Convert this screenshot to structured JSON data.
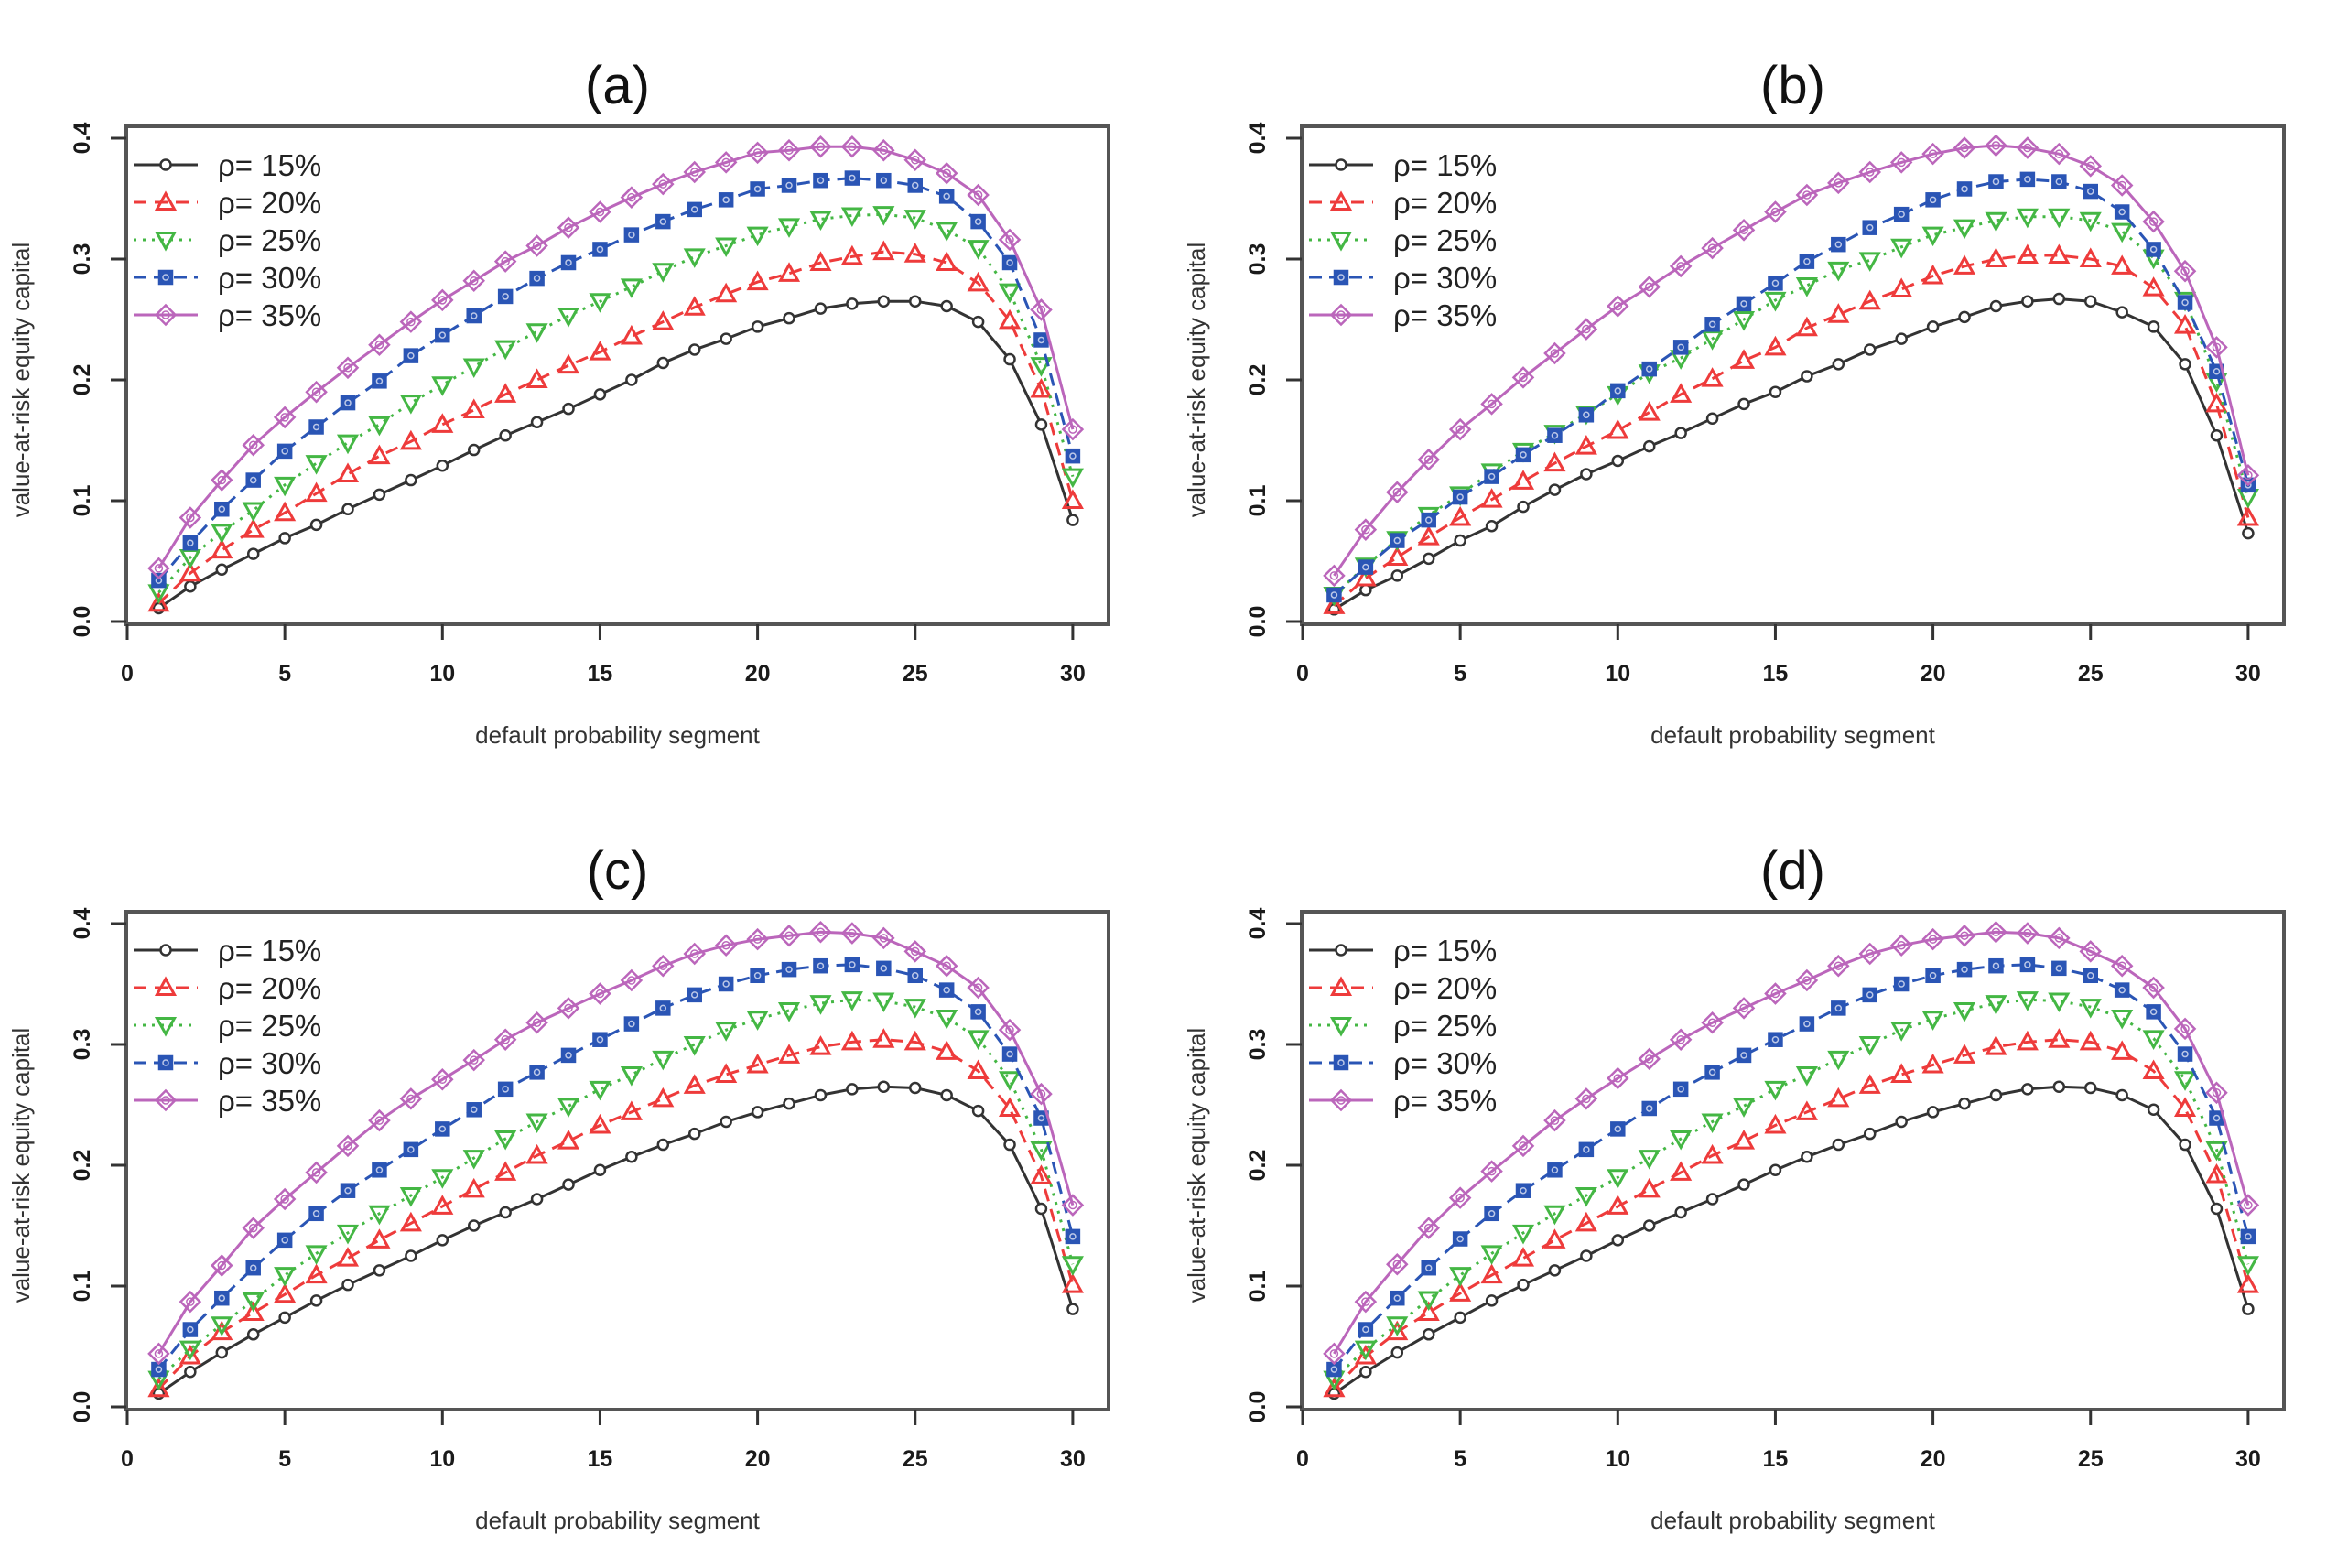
{
  "figure": {
    "panels": [
      "a",
      "b",
      "c",
      "d"
    ]
  },
  "chart_data": [
    {
      "type": "line",
      "panel": "a",
      "title": "(a)",
      "xlabel": "default probability segment",
      "ylabel": "value-at-risk equity capital",
      "xlim": [
        0,
        30
      ],
      "ylim": [
        0.0,
        0.4
      ],
      "xticks": [
        "0",
        "5",
        "10",
        "15",
        "20",
        "25",
        "30"
      ],
      "yticks": [
        "0.0",
        "0.1",
        "0.2",
        "0.3",
        "0.4"
      ],
      "grid": false,
      "legend_position": "top-left",
      "x": [
        1,
        2,
        3,
        4,
        5,
        6,
        7,
        8,
        9,
        10,
        11,
        12,
        13,
        14,
        15,
        16,
        17,
        18,
        19,
        20,
        21,
        22,
        23,
        24,
        25,
        26,
        27,
        28,
        29,
        30
      ],
      "series": [
        {
          "name": "ρ= 15%",
          "color": "#333333",
          "marker": "circle",
          "dash": "solid",
          "values": [
            0.011,
            0.029,
            0.043,
            0.056,
            0.069,
            0.08,
            0.093,
            0.105,
            0.117,
            0.129,
            0.142,
            0.154,
            0.165,
            0.176,
            0.188,
            0.2,
            0.214,
            0.225,
            0.234,
            0.244,
            0.251,
            0.259,
            0.263,
            0.265,
            0.265,
            0.261,
            0.248,
            0.217,
            0.163,
            0.084
          ]
        },
        {
          "name": "ρ= 20%",
          "color": "#ee3b3b",
          "marker": "triangle-up",
          "dash": "dashed",
          "values": [
            0.015,
            0.04,
            0.059,
            0.076,
            0.09,
            0.106,
            0.122,
            0.137,
            0.149,
            0.163,
            0.175,
            0.188,
            0.2,
            0.212,
            0.223,
            0.236,
            0.248,
            0.26,
            0.271,
            0.281,
            0.288,
            0.297,
            0.302,
            0.306,
            0.304,
            0.297,
            0.28,
            0.249,
            0.192,
            0.1
          ]
        },
        {
          "name": "ρ= 25%",
          "color": "#44b744",
          "marker": "triangle-down",
          "dash": "dotted",
          "values": [
            0.024,
            0.053,
            0.074,
            0.092,
            0.113,
            0.131,
            0.148,
            0.163,
            0.181,
            0.196,
            0.211,
            0.226,
            0.24,
            0.253,
            0.265,
            0.277,
            0.29,
            0.302,
            0.311,
            0.32,
            0.327,
            0.333,
            0.336,
            0.337,
            0.334,
            0.324,
            0.309,
            0.273,
            0.212,
            0.12
          ]
        },
        {
          "name": "ρ= 30%",
          "color": "#2a55b5",
          "marker": "square-filled",
          "dash": "dashdot",
          "values": [
            0.034,
            0.065,
            0.093,
            0.117,
            0.141,
            0.161,
            0.181,
            0.199,
            0.22,
            0.237,
            0.253,
            0.269,
            0.284,
            0.297,
            0.308,
            0.32,
            0.331,
            0.341,
            0.349,
            0.358,
            0.361,
            0.365,
            0.367,
            0.365,
            0.361,
            0.352,
            0.331,
            0.297,
            0.233,
            0.137
          ]
        },
        {
          "name": "ρ= 35%",
          "color": "#bb66bb",
          "marker": "diamond",
          "dash": "solid",
          "values": [
            0.044,
            0.086,
            0.117,
            0.146,
            0.169,
            0.19,
            0.21,
            0.229,
            0.248,
            0.266,
            0.282,
            0.298,
            0.311,
            0.326,
            0.339,
            0.351,
            0.362,
            0.372,
            0.38,
            0.388,
            0.39,
            0.393,
            0.393,
            0.39,
            0.382,
            0.371,
            0.353,
            0.316,
            0.258,
            0.159
          ]
        }
      ]
    },
    {
      "type": "line",
      "panel": "b",
      "title": "(b)",
      "xlabel": "default probability segment",
      "ylabel": "value-at-risk equity capital",
      "xlim": [
        0,
        30
      ],
      "ylim": [
        0.0,
        0.4
      ],
      "xticks": [
        "0",
        "5",
        "10",
        "15",
        "20",
        "25",
        "30"
      ],
      "yticks": [
        "0.0",
        "0.1",
        "0.2",
        "0.3",
        "0.4"
      ],
      "grid": false,
      "legend_position": "top-left",
      "x": [
        1,
        2,
        3,
        4,
        5,
        6,
        7,
        8,
        9,
        10,
        11,
        12,
        13,
        14,
        15,
        16,
        17,
        18,
        19,
        20,
        21,
        22,
        23,
        24,
        25,
        26,
        27,
        28,
        29,
        30
      ],
      "series": [
        {
          "name": "ρ= 15%",
          "color": "#333333",
          "marker": "circle",
          "dash": "solid",
          "values": [
            0.01,
            0.026,
            0.038,
            0.052,
            0.067,
            0.079,
            0.095,
            0.109,
            0.122,
            0.133,
            0.145,
            0.156,
            0.168,
            0.18,
            0.19,
            0.203,
            0.213,
            0.225,
            0.234,
            0.244,
            0.252,
            0.261,
            0.265,
            0.267,
            0.265,
            0.256,
            0.244,
            0.213,
            0.154,
            0.073
          ]
        },
        {
          "name": "ρ= 20%",
          "color": "#ee3b3b",
          "marker": "triangle-up",
          "dash": "dashed",
          "values": [
            0.013,
            0.036,
            0.053,
            0.07,
            0.086,
            0.101,
            0.116,
            0.131,
            0.145,
            0.158,
            0.173,
            0.188,
            0.201,
            0.216,
            0.227,
            0.243,
            0.254,
            0.265,
            0.275,
            0.286,
            0.294,
            0.3,
            0.303,
            0.303,
            0.3,
            0.294,
            0.276,
            0.245,
            0.18,
            0.086
          ]
        },
        {
          "name": "ρ= 25%",
          "color": "#44b744",
          "marker": "triangle-down",
          "dash": "dotted",
          "values": [
            0.022,
            0.046,
            0.068,
            0.088,
            0.105,
            0.124,
            0.141,
            0.156,
            0.172,
            0.188,
            0.206,
            0.218,
            0.234,
            0.25,
            0.266,
            0.278,
            0.291,
            0.299,
            0.31,
            0.32,
            0.326,
            0.332,
            0.335,
            0.335,
            0.332,
            0.323,
            0.301,
            0.266,
            0.199,
            0.103
          ]
        },
        {
          "name": "ρ= 30%",
          "color": "#2a55b5",
          "marker": "square-filled",
          "dash": "dashdot",
          "values": [
            0.022,
            0.045,
            0.067,
            0.084,
            0.103,
            0.12,
            0.138,
            0.154,
            0.171,
            0.191,
            0.209,
            0.227,
            0.246,
            0.263,
            0.28,
            0.298,
            0.312,
            0.326,
            0.337,
            0.349,
            0.358,
            0.364,
            0.366,
            0.364,
            0.356,
            0.339,
            0.308,
            0.264,
            0.207,
            0.113
          ]
        },
        {
          "name": "ρ= 35%",
          "color": "#bb66bb",
          "marker": "diamond",
          "dash": "solid",
          "values": [
            0.038,
            0.076,
            0.107,
            0.134,
            0.159,
            0.18,
            0.202,
            0.222,
            0.242,
            0.261,
            0.277,
            0.294,
            0.309,
            0.324,
            0.339,
            0.353,
            0.363,
            0.372,
            0.38,
            0.387,
            0.392,
            0.394,
            0.392,
            0.387,
            0.377,
            0.361,
            0.331,
            0.29,
            0.227,
            0.121
          ]
        }
      ]
    },
    {
      "type": "line",
      "panel": "c",
      "title": "(c)",
      "xlabel": "default probability segment",
      "ylabel": "value-at-risk equity capital",
      "xlim": [
        0,
        30
      ],
      "ylim": [
        0.0,
        0.4
      ],
      "xticks": [
        "0",
        "5",
        "10",
        "15",
        "20",
        "25",
        "30"
      ],
      "yticks": [
        "0.0",
        "0.1",
        "0.2",
        "0.3",
        "0.4"
      ],
      "grid": false,
      "legend_position": "top-left",
      "x": [
        1,
        2,
        3,
        4,
        5,
        6,
        7,
        8,
        9,
        10,
        11,
        12,
        13,
        14,
        15,
        16,
        17,
        18,
        19,
        20,
        21,
        22,
        23,
        24,
        25,
        26,
        27,
        28,
        29,
        30
      ],
      "series": [
        {
          "name": "ρ= 15%",
          "color": "#333333",
          "marker": "circle",
          "dash": "solid",
          "values": [
            0.011,
            0.029,
            0.045,
            0.06,
            0.074,
            0.088,
            0.101,
            0.113,
            0.125,
            0.138,
            0.15,
            0.161,
            0.172,
            0.184,
            0.196,
            0.207,
            0.217,
            0.226,
            0.236,
            0.244,
            0.251,
            0.258,
            0.263,
            0.265,
            0.264,
            0.258,
            0.245,
            0.217,
            0.164,
            0.081
          ]
        },
        {
          "name": "ρ= 20%",
          "color": "#ee3b3b",
          "marker": "triangle-up",
          "dash": "dashed",
          "values": [
            0.015,
            0.042,
            0.062,
            0.078,
            0.093,
            0.109,
            0.123,
            0.138,
            0.152,
            0.166,
            0.18,
            0.194,
            0.208,
            0.22,
            0.233,
            0.244,
            0.255,
            0.266,
            0.275,
            0.283,
            0.291,
            0.298,
            0.302,
            0.304,
            0.302,
            0.294,
            0.278,
            0.247,
            0.191,
            0.101
          ]
        },
        {
          "name": "ρ= 25%",
          "color": "#44b744",
          "marker": "triangle-down",
          "dash": "dotted",
          "values": [
            0.023,
            0.048,
            0.068,
            0.088,
            0.109,
            0.127,
            0.144,
            0.16,
            0.175,
            0.19,
            0.206,
            0.222,
            0.236,
            0.249,
            0.263,
            0.275,
            0.288,
            0.3,
            0.312,
            0.321,
            0.328,
            0.334,
            0.337,
            0.336,
            0.331,
            0.322,
            0.305,
            0.271,
            0.213,
            0.118
          ]
        },
        {
          "name": "ρ= 30%",
          "color": "#2a55b5",
          "marker": "square-filled",
          "dash": "dashdot",
          "values": [
            0.031,
            0.064,
            0.09,
            0.115,
            0.138,
            0.16,
            0.179,
            0.196,
            0.213,
            0.23,
            0.246,
            0.263,
            0.277,
            0.291,
            0.304,
            0.317,
            0.33,
            0.341,
            0.35,
            0.357,
            0.362,
            0.365,
            0.366,
            0.363,
            0.357,
            0.345,
            0.327,
            0.292,
            0.239,
            0.141
          ]
        },
        {
          "name": "ρ= 35%",
          "color": "#bb66bb",
          "marker": "diamond",
          "dash": "solid",
          "values": [
            0.044,
            0.087,
            0.117,
            0.148,
            0.172,
            0.194,
            0.216,
            0.237,
            0.255,
            0.271,
            0.287,
            0.304,
            0.318,
            0.33,
            0.342,
            0.353,
            0.365,
            0.375,
            0.382,
            0.387,
            0.39,
            0.393,
            0.392,
            0.388,
            0.377,
            0.365,
            0.347,
            0.312,
            0.259,
            0.167
          ]
        }
      ]
    },
    {
      "type": "line",
      "panel": "d",
      "title": "(d)",
      "xlabel": "default probability segment",
      "ylabel": "value-at-risk equity capital",
      "xlim": [
        0,
        30
      ],
      "ylim": [
        0.0,
        0.4
      ],
      "xticks": [
        "0",
        "5",
        "10",
        "15",
        "20",
        "25",
        "30"
      ],
      "yticks": [
        "0.0",
        "0.1",
        "0.2",
        "0.3",
        "0.4"
      ],
      "grid": false,
      "legend_position": "top-left",
      "x": [
        1,
        2,
        3,
        4,
        5,
        6,
        7,
        8,
        9,
        10,
        11,
        12,
        13,
        14,
        15,
        16,
        17,
        18,
        19,
        20,
        21,
        22,
        23,
        24,
        25,
        26,
        27,
        28,
        29,
        30
      ],
      "series": [
        {
          "name": "ρ= 15%",
          "color": "#333333",
          "marker": "circle",
          "dash": "solid",
          "values": [
            0.011,
            0.029,
            0.045,
            0.06,
            0.074,
            0.088,
            0.101,
            0.113,
            0.125,
            0.138,
            0.15,
            0.161,
            0.172,
            0.184,
            0.196,
            0.207,
            0.217,
            0.226,
            0.236,
            0.244,
            0.251,
            0.258,
            0.263,
            0.265,
            0.264,
            0.258,
            0.246,
            0.217,
            0.164,
            0.081
          ]
        },
        {
          "name": "ρ= 20%",
          "color": "#ee3b3b",
          "marker": "triangle-up",
          "dash": "dashed",
          "values": [
            0.015,
            0.042,
            0.062,
            0.078,
            0.094,
            0.109,
            0.123,
            0.138,
            0.152,
            0.166,
            0.18,
            0.194,
            0.208,
            0.22,
            0.233,
            0.244,
            0.255,
            0.266,
            0.275,
            0.283,
            0.291,
            0.298,
            0.302,
            0.304,
            0.302,
            0.294,
            0.278,
            0.247,
            0.192,
            0.101
          ]
        },
        {
          "name": "ρ= 25%",
          "color": "#44b744",
          "marker": "triangle-down",
          "dash": "dotted",
          "values": [
            0.023,
            0.048,
            0.068,
            0.089,
            0.109,
            0.127,
            0.144,
            0.16,
            0.175,
            0.19,
            0.206,
            0.222,
            0.236,
            0.249,
            0.263,
            0.275,
            0.288,
            0.3,
            0.312,
            0.321,
            0.328,
            0.334,
            0.337,
            0.336,
            0.331,
            0.322,
            0.305,
            0.271,
            0.213,
            0.118
          ]
        },
        {
          "name": "ρ= 30%",
          "color": "#2a55b5",
          "marker": "square-filled",
          "dash": "dashdot",
          "values": [
            0.031,
            0.064,
            0.09,
            0.115,
            0.139,
            0.16,
            0.179,
            0.196,
            0.213,
            0.23,
            0.247,
            0.263,
            0.277,
            0.291,
            0.304,
            0.317,
            0.33,
            0.341,
            0.35,
            0.357,
            0.362,
            0.365,
            0.366,
            0.363,
            0.357,
            0.345,
            0.327,
            0.292,
            0.239,
            0.141
          ]
        },
        {
          "name": "ρ= 35%",
          "color": "#bb66bb",
          "marker": "diamond",
          "dash": "solid",
          "values": [
            0.044,
            0.087,
            0.118,
            0.148,
            0.173,
            0.195,
            0.216,
            0.237,
            0.255,
            0.272,
            0.288,
            0.304,
            0.318,
            0.33,
            0.342,
            0.353,
            0.365,
            0.375,
            0.382,
            0.387,
            0.39,
            0.393,
            0.392,
            0.388,
            0.377,
            0.365,
            0.347,
            0.313,
            0.26,
            0.167
          ]
        }
      ]
    }
  ]
}
